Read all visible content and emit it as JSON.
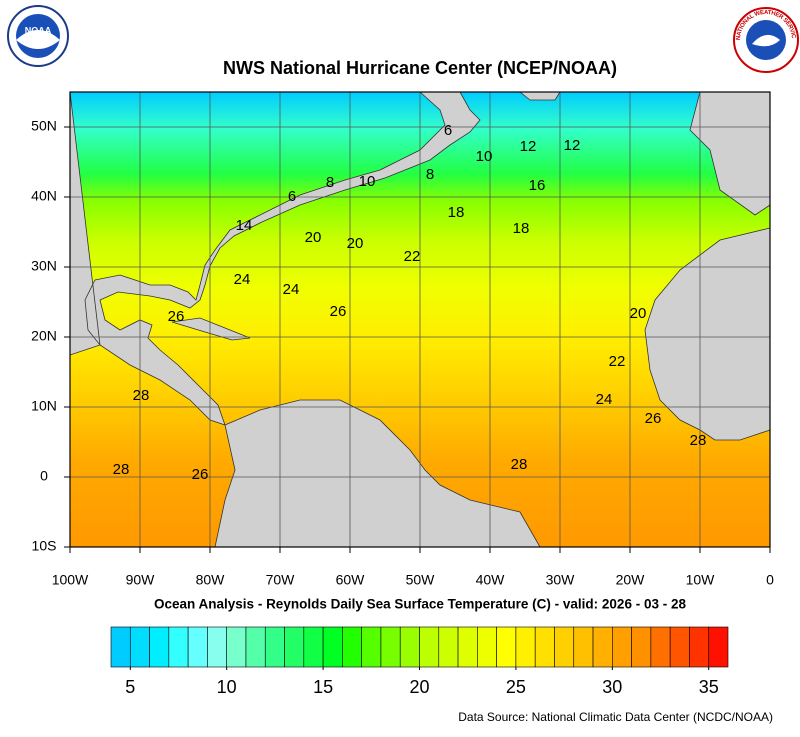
{
  "header": {
    "title": "NWS National Hurricane Center (NCEP/NOAA)",
    "noaa_logo": "NOAA",
    "nws_logo": "NATIONAL WEATHER SERVICE"
  },
  "map": {
    "xlim": [
      -100,
      0
    ],
    "ylim": [
      -10,
      55
    ],
    "xticks": [
      {
        "value": -100,
        "label": "100W"
      },
      {
        "value": -90,
        "label": "90W"
      },
      {
        "value": -80,
        "label": "80W"
      },
      {
        "value": -70,
        "label": "70W"
      },
      {
        "value": -60,
        "label": "60W"
      },
      {
        "value": -50,
        "label": "50W"
      },
      {
        "value": -40,
        "label": "40W"
      },
      {
        "value": -30,
        "label": "30W"
      },
      {
        "value": -20,
        "label": "20W"
      },
      {
        "value": -10,
        "label": "10W"
      },
      0
    ],
    "yticks": [
      {
        "value": -10,
        "label": "10S"
      },
      0,
      {
        "value": 10,
        "label": "10N"
      },
      {
        "value": 20,
        "label": "20N"
      },
      {
        "value": 30,
        "label": "30N"
      },
      {
        "value": 40,
        "label": "40N"
      },
      {
        "value": 50,
        "label": "50N"
      }
    ],
    "grid": true,
    "contour_labels": [
      6,
      10,
      12,
      12,
      8,
      16,
      10,
      8,
      6,
      18,
      18,
      14,
      20,
      20,
      22,
      24,
      24,
      26,
      26,
      20,
      22,
      28,
      24,
      26,
      28,
      28,
      28,
      26
    ]
  },
  "subtitle": "Ocean Analysis - Reynolds Daily Sea Surface Temperature (C) - valid: 2026 - 03 - 28",
  "colorbar": {
    "range": [
      4,
      36
    ],
    "ticks": [
      5,
      10,
      15,
      20,
      25,
      30,
      35
    ],
    "colors": [
      "#00ccff",
      "#00ddff",
      "#00eeff",
      "#33ffff",
      "#66ffff",
      "#88ffee",
      "#77ffcc",
      "#55ffaa",
      "#33ff88",
      "#22ff66",
      "#11ff44",
      "#00ff22",
      "#22ff00",
      "#55ff00",
      "#77ff00",
      "#99ff00",
      "#bbff00",
      "#ccff00",
      "#ddff00",
      "#eeff00",
      "#ffff00",
      "#fff000",
      "#ffe000",
      "#ffd000",
      "#ffc000",
      "#ffb000",
      "#ffa000",
      "#ff9000",
      "#ff7000",
      "#ff5500",
      "#ff3300",
      "#ff1100"
    ]
  },
  "footer": {
    "source": "Data Source: National Climatic Data Center (NCDC/NOAA)"
  }
}
